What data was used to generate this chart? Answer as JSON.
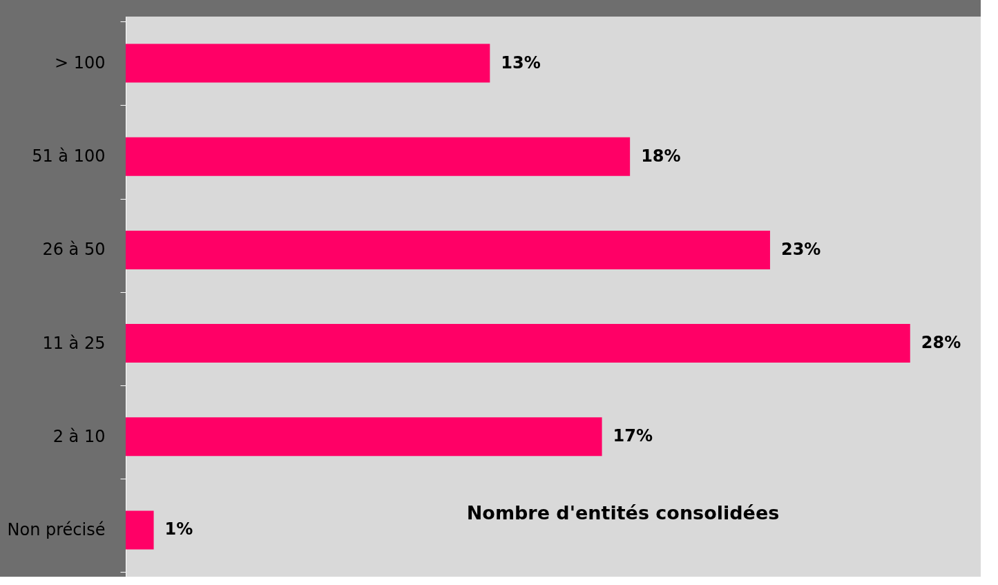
{
  "chart_data": {
    "type": "bar",
    "orientation": "horizontal",
    "title": "Nombre d'entités consolidées",
    "categories": [
      "> 100",
      "51 à 100",
      "26 à 50",
      "11 à 25",
      "2 à 10",
      "Non précisé"
    ],
    "series": [
      {
        "color": "#ff0066",
        "values": [
          13,
          18,
          23,
          28,
          17,
          1
        ],
        "value_labels": [
          "13%",
          "18%",
          "23%",
          "28%",
          "17%",
          "1%"
        ]
      }
    ],
    "tick_labels": "y"
  }
}
